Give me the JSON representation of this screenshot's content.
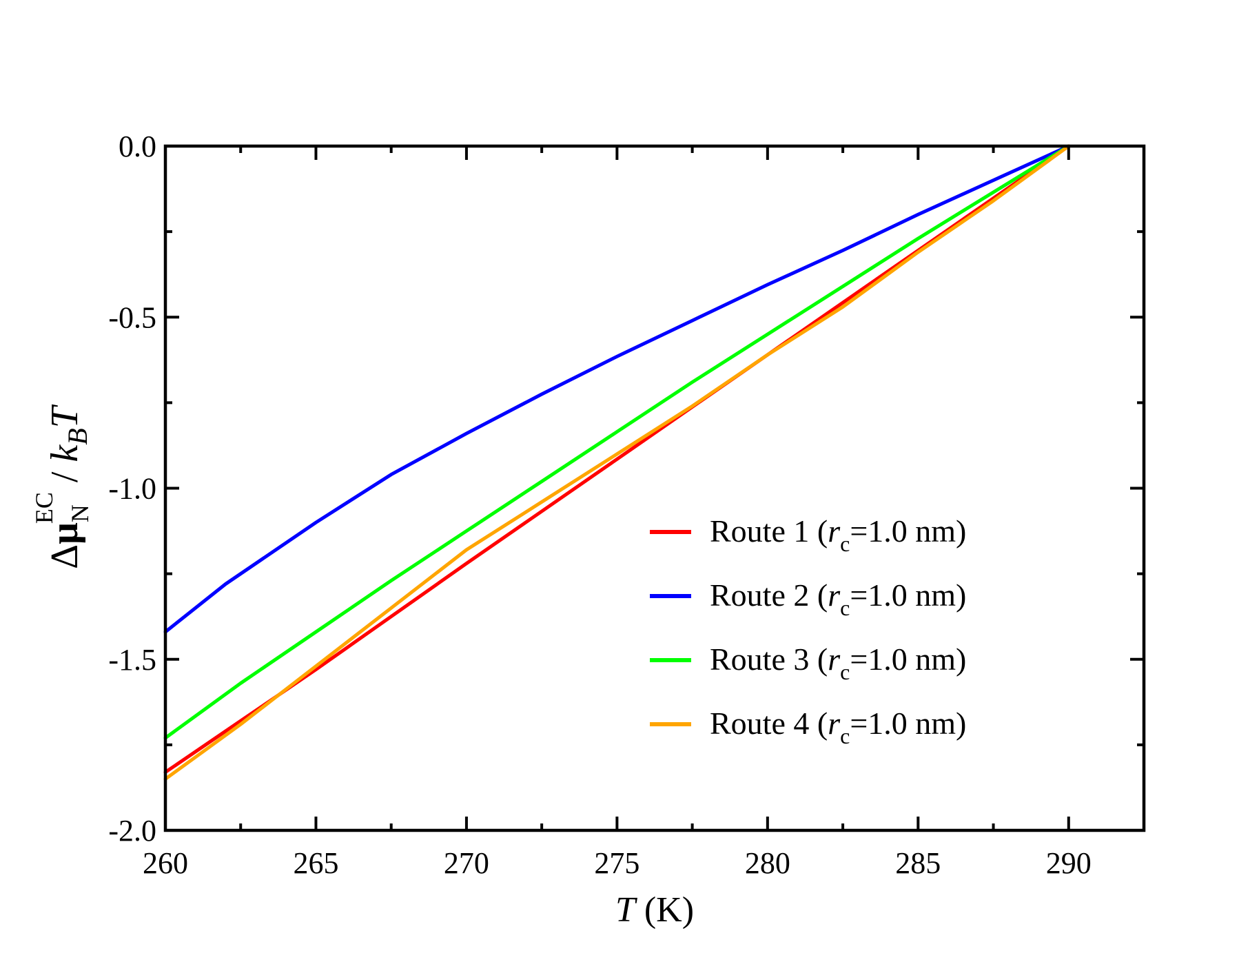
{
  "chart_data": {
    "type": "line",
    "xlabel": {
      "italic": "T",
      "rest": " (K)"
    },
    "ylabel": {
      "delta": "Δ",
      "mu": "μ",
      "mu_sub": "N",
      "mu_sup": "EC",
      "sep": " / ",
      "k": "k",
      "k_sub": "B",
      "T": "T"
    },
    "xlim": [
      260,
      292.5
    ],
    "ylim": [
      -2.0,
      0.0
    ],
    "xticks": [
      260,
      265,
      270,
      275,
      280,
      285,
      290
    ],
    "xtick_labels": [
      "260",
      "265",
      "270",
      "275",
      "280",
      "285",
      "290"
    ],
    "yticks": [
      0.0,
      -0.5,
      -1.0,
      -1.5,
      -2.0
    ],
    "ytick_labels": [
      "0.0",
      "-0.5",
      "-1.0",
      "-1.5",
      "-2.0"
    ],
    "grid": false,
    "legend_position": "center-right",
    "series": [
      {
        "name": "Route 1",
        "legend": {
          "prefix": "Route 1 (",
          "r": "r",
          "r_sub": "c",
          "suffix": "=1.0 nm)"
        },
        "color": "#ff0000",
        "x": [
          260,
          262,
          265,
          270,
          275,
          280,
          285,
          290
        ],
        "y": [
          -1.83,
          -1.71,
          -1.53,
          -1.22,
          -0.915,
          -0.61,
          -0.305,
          0.0
        ]
      },
      {
        "name": "Route 2",
        "legend": {
          "prefix": "Route 2 (",
          "r": "r",
          "r_sub": "c",
          "suffix": "=1.0 nm)"
        },
        "color": "#0000ff",
        "x": [
          260,
          262,
          265,
          267.5,
          270,
          272.5,
          275,
          277.5,
          280,
          282.5,
          285,
          287.5,
          290
        ],
        "y": [
          -1.42,
          -1.28,
          -1.1,
          -0.96,
          -0.84,
          -0.725,
          -0.615,
          -0.51,
          -0.405,
          -0.305,
          -0.2,
          -0.1,
          0.0
        ]
      },
      {
        "name": "Route 3",
        "legend": {
          "prefix": "Route 3 (",
          "r": "r",
          "r_sub": "c",
          "suffix": "=1.0 nm)"
        },
        "color": "#00ff00",
        "x": [
          260,
          262.5,
          265,
          267.5,
          270,
          272.5,
          275,
          277.5,
          280,
          282.5,
          285,
          287.5,
          290
        ],
        "y": [
          -1.73,
          -1.57,
          -1.42,
          -1.27,
          -1.125,
          -0.98,
          -0.835,
          -0.69,
          -0.55,
          -0.41,
          -0.27,
          -0.135,
          0.0
        ]
      },
      {
        "name": "Route 4",
        "legend": {
          "prefix": "Route 4 (",
          "r": "r",
          "r_sub": "c",
          "suffix": "=1.0 nm)"
        },
        "color": "#ffa500",
        "x": [
          260,
          262.5,
          265,
          267.5,
          270,
          272.5,
          275,
          277.5,
          280,
          282.5,
          285,
          287.5,
          290
        ],
        "y": [
          -1.85,
          -1.69,
          -1.52,
          -1.35,
          -1.18,
          -1.04,
          -0.9,
          -0.76,
          -0.61,
          -0.47,
          -0.31,
          -0.16,
          0.0
        ]
      }
    ]
  }
}
